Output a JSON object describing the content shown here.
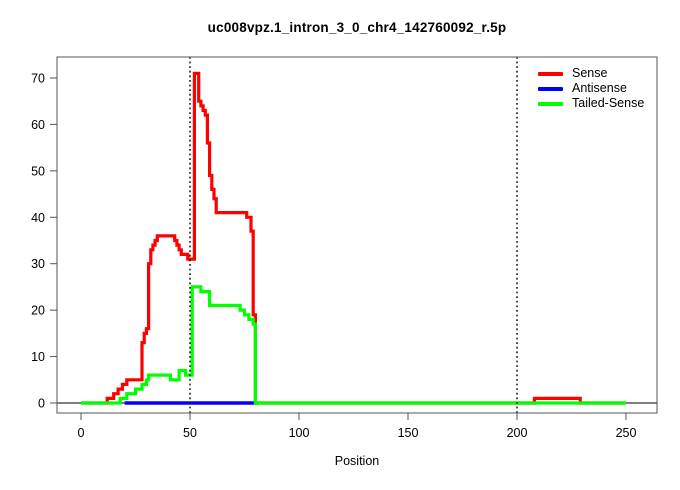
{
  "chart_data": {
    "type": "line",
    "step": true,
    "title": "uc008vpz.1_intron_3_0_chr4_142760092_r.5p",
    "xlabel": "Position",
    "ylabel": "",
    "xlim": [
      0,
      250
    ],
    "ylim": [
      0,
      71
    ],
    "xticks": [
      0,
      50,
      100,
      150,
      200,
      250
    ],
    "yticks": [
      0,
      10,
      20,
      30,
      40,
      50,
      60,
      70
    ],
    "grid": false,
    "legend_position": "top-right",
    "baseline": {
      "y": 0,
      "color": "#000000"
    },
    "vlines": {
      "positions": [
        50,
        200
      ],
      "style": "dotted",
      "color": "#000000"
    },
    "axis_color": "#555555",
    "series": [
      {
        "name": "Sense",
        "color": "#FF0000",
        "points": [
          [
            0,
            0
          ],
          [
            12,
            1
          ],
          [
            15,
            2
          ],
          [
            17,
            3
          ],
          [
            19,
            4
          ],
          [
            21,
            5
          ],
          [
            28,
            13
          ],
          [
            29,
            15
          ],
          [
            30,
            16
          ],
          [
            31,
            30
          ],
          [
            32,
            33
          ],
          [
            33,
            34
          ],
          [
            34,
            35
          ],
          [
            35,
            36
          ],
          [
            43,
            35
          ],
          [
            44,
            34
          ],
          [
            45,
            33
          ],
          [
            46,
            32
          ],
          [
            49,
            31
          ],
          [
            52,
            71
          ],
          [
            54,
            65
          ],
          [
            55,
            64
          ],
          [
            56,
            63
          ],
          [
            57,
            62
          ],
          [
            58,
            56
          ],
          [
            59,
            49
          ],
          [
            60,
            46
          ],
          [
            61,
            44
          ],
          [
            62,
            41
          ],
          [
            76,
            40
          ],
          [
            78,
            37
          ],
          [
            79,
            19
          ],
          [
            80,
            0
          ],
          [
            208,
            1
          ],
          [
            229,
            0
          ],
          [
            250,
            0
          ]
        ]
      },
      {
        "name": "Antisense",
        "color": "#0000FF",
        "points": [
          [
            20,
            0
          ],
          [
            81,
            0
          ]
        ]
      },
      {
        "name": "Tailed-Sense",
        "color": "#00FF00",
        "points": [
          [
            0,
            0
          ],
          [
            18,
            1
          ],
          [
            21,
            2
          ],
          [
            25,
            3
          ],
          [
            28,
            4
          ],
          [
            30,
            5
          ],
          [
            31,
            6
          ],
          [
            41,
            5
          ],
          [
            45,
            7
          ],
          [
            48,
            6
          ],
          [
            51,
            25
          ],
          [
            55,
            24
          ],
          [
            59,
            21
          ],
          [
            73,
            20
          ],
          [
            75,
            19
          ],
          [
            77,
            18
          ],
          [
            79,
            17
          ],
          [
            80,
            0
          ],
          [
            250,
            0
          ]
        ]
      }
    ]
  }
}
